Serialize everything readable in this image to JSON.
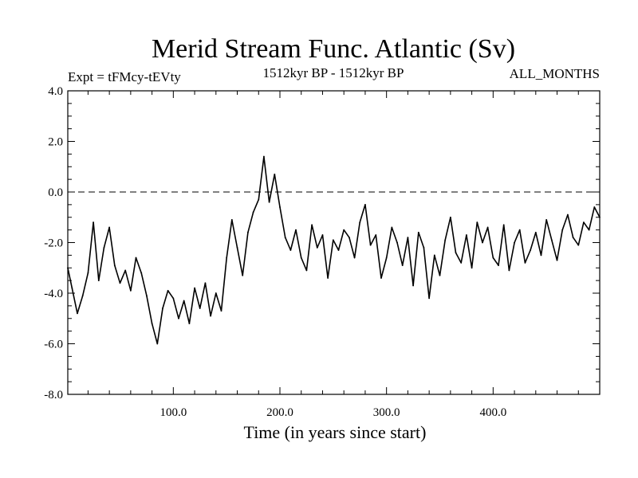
{
  "chart_data": {
    "type": "line",
    "title": "Merid Stream Func. Atlantic (Sv)",
    "subtitle": "1512kyr BP - 1512kyr BP",
    "left_label": "Expt = tFMcy-tEVty",
    "right_label": "ALL_MONTHS",
    "xlabel": "Time (in years since start)",
    "ylabel": "",
    "xlim": [
      1,
      500
    ],
    "ylim": [
      -8,
      4
    ],
    "x_ticks": [
      100,
      200,
      300,
      400
    ],
    "x_tick_labels": [
      "100.0",
      "200.0",
      "300.0",
      "400.0"
    ],
    "y_ticks": [
      -8,
      -6,
      -4,
      -2,
      0,
      2,
      4
    ],
    "y_tick_labels": [
      "-8.0",
      "-6.0",
      "-4.0",
      "-2.0",
      "0.0",
      "2.0",
      "4.0"
    ],
    "reference_line": 0,
    "x": [
      1,
      5,
      10,
      15,
      20,
      25,
      30,
      35,
      40,
      45,
      50,
      55,
      60,
      65,
      70,
      75,
      80,
      85,
      90,
      95,
      100,
      105,
      110,
      115,
      120,
      125,
      130,
      135,
      140,
      145,
      150,
      155,
      160,
      165,
      170,
      175,
      180,
      185,
      190,
      195,
      200,
      205,
      210,
      215,
      220,
      225,
      230,
      235,
      240,
      245,
      250,
      255,
      260,
      265,
      270,
      275,
      280,
      285,
      290,
      295,
      300,
      305,
      310,
      315,
      320,
      325,
      330,
      335,
      340,
      345,
      350,
      355,
      360,
      365,
      370,
      375,
      380,
      385,
      390,
      395,
      400,
      405,
      410,
      415,
      420,
      425,
      430,
      435,
      440,
      445,
      450,
      455,
      460,
      465,
      470,
      475,
      480,
      485,
      490,
      495,
      500
    ],
    "values": [
      -3.0,
      -3.8,
      -4.8,
      -4.1,
      -3.2,
      -1.2,
      -3.5,
      -2.2,
      -1.4,
      -2.9,
      -3.6,
      -3.1,
      -3.9,
      -2.6,
      -3.2,
      -4.1,
      -5.2,
      -6.0,
      -4.6,
      -3.9,
      -4.2,
      -5.0,
      -4.3,
      -5.2,
      -3.8,
      -4.6,
      -3.6,
      -4.9,
      -4.0,
      -4.7,
      -2.6,
      -1.1,
      -2.2,
      -3.3,
      -1.6,
      -0.8,
      -0.3,
      1.4,
      -0.4,
      0.7,
      -0.6,
      -1.8,
      -2.3,
      -1.5,
      -2.6,
      -3.1,
      -1.3,
      -2.2,
      -1.7,
      -3.4,
      -1.9,
      -2.3,
      -1.5,
      -1.8,
      -2.6,
      -1.2,
      -0.5,
      -2.1,
      -1.7,
      -3.4,
      -2.6,
      -1.4,
      -2.0,
      -2.9,
      -1.8,
      -3.7,
      -1.6,
      -2.2,
      -4.2,
      -2.5,
      -3.3,
      -1.9,
      -1.0,
      -2.4,
      -2.8,
      -1.7,
      -3.0,
      -1.2,
      -2.0,
      -1.4,
      -2.6,
      -2.9,
      -1.3,
      -3.1,
      -2.0,
      -1.5,
      -2.8,
      -2.3,
      -1.6,
      -2.5,
      -1.1,
      -1.9,
      -2.7,
      -1.5,
      -0.9,
      -1.8,
      -2.1,
      -1.2,
      -1.5,
      -0.6,
      -1.0
    ]
  }
}
